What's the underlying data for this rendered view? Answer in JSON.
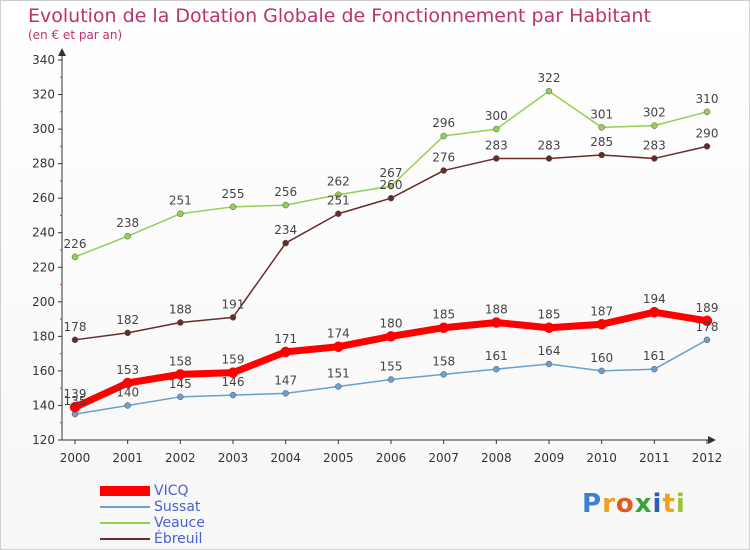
{
  "header": {
    "title": "Evolution de la Dotation Globale de Fonctionnement par Habitant",
    "subtitle": "(en € et par an)"
  },
  "logo": {
    "letters": [
      {
        "ch": "P",
        "color": "#3d7fd0"
      },
      {
        "ch": "r",
        "color": "#f0a020"
      },
      {
        "ch": "o",
        "color": "#e05c1c"
      },
      {
        "ch": "x",
        "color": "#3aa43a"
      },
      {
        "ch": "i",
        "color": "#2a5fb0"
      },
      {
        "ch": "t",
        "color": "#f0a020"
      },
      {
        "ch": "i",
        "color": "#9ac43a"
      }
    ]
  },
  "chart_data": {
    "type": "line",
    "x": [
      "2000",
      "2001",
      "2002",
      "2003",
      "2004",
      "2005",
      "2006",
      "2007",
      "2008",
      "2009",
      "2010",
      "2011",
      "2012"
    ],
    "ylim": [
      120,
      340
    ],
    "yticks": [
      120,
      140,
      160,
      180,
      200,
      220,
      240,
      260,
      280,
      300,
      320,
      340
    ],
    "grid": false,
    "legend_position": "bottom-left",
    "series": [
      {
        "name": "VICQ",
        "color": "#ff0000",
        "width": 7,
        "values": [
          139,
          153,
          158,
          159,
          171,
          174,
          180,
          185,
          188,
          185,
          187,
          194,
          189
        ]
      },
      {
        "name": "Sussat",
        "color": "#6a9fd0",
        "width": 1.5,
        "values": [
          135,
          140,
          145,
          146,
          147,
          151,
          155,
          158,
          161,
          164,
          160,
          161,
          178
        ]
      },
      {
        "name": "Veauce",
        "color": "#92d050",
        "width": 1.5,
        "values": [
          226,
          238,
          251,
          255,
          256,
          262,
          267,
          296,
          300,
          322,
          301,
          302,
          310
        ]
      },
      {
        "name": "Ébreuil",
        "color": "#6b2a2a",
        "width": 1.5,
        "values": [
          178,
          182,
          188,
          191,
          234,
          251,
          260,
          276,
          283,
          283,
          285,
          283,
          290
        ]
      }
    ]
  }
}
